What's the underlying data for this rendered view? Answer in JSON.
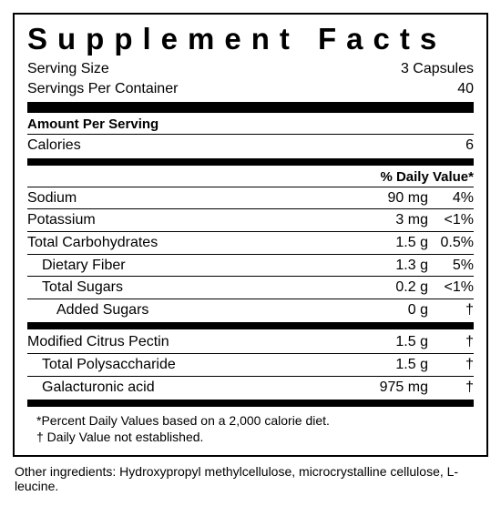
{
  "title": "Supplement Facts",
  "serving_size_label": "Serving Size",
  "serving_size_value": "3 Capsules",
  "servings_per_label": "Servings Per Container",
  "servings_per_value": "40",
  "amount_per_serving_label": "Amount Per Serving",
  "calories_label": "Calories",
  "calories_value": "6",
  "dv_header": "% Daily Value*",
  "nutrients_top": [
    {
      "name": "Sodium",
      "amount": "90 mg",
      "dv": "4%",
      "indent": 0
    },
    {
      "name": "Potassium",
      "amount": "3 mg",
      "dv": "<1%",
      "indent": 0
    },
    {
      "name": "Total Carbohydrates",
      "amount": "1.5 g",
      "dv": "0.5%",
      "indent": 0
    },
    {
      "name": "Dietary Fiber",
      "amount": "1.3 g",
      "dv": "5%",
      "indent": 1
    },
    {
      "name": "Total Sugars",
      "amount": "0.2 g",
      "dv": "<1%",
      "indent": 1
    },
    {
      "name": "Added Sugars",
      "amount": "0 g",
      "dv": "†",
      "indent": 2
    }
  ],
  "nutrients_bottom": [
    {
      "name": "Modified Citrus Pectin",
      "amount": "1.5 g",
      "dv": "†",
      "indent": 0
    },
    {
      "name": "Total Polysaccharide",
      "amount": "1.5 g",
      "dv": "†",
      "indent": 1
    },
    {
      "name": "Galacturonic acid",
      "amount": "975 mg",
      "dv": "†",
      "indent": 1
    }
  ],
  "footnote1": "*Percent Daily Values based on a 2,000 calorie diet.",
  "footnote2": "† Daily Value not established.",
  "other_ingredients": "Other ingredients: Hydroxypropyl methylcellulose, microcrystalline cellulose, L-leucine."
}
